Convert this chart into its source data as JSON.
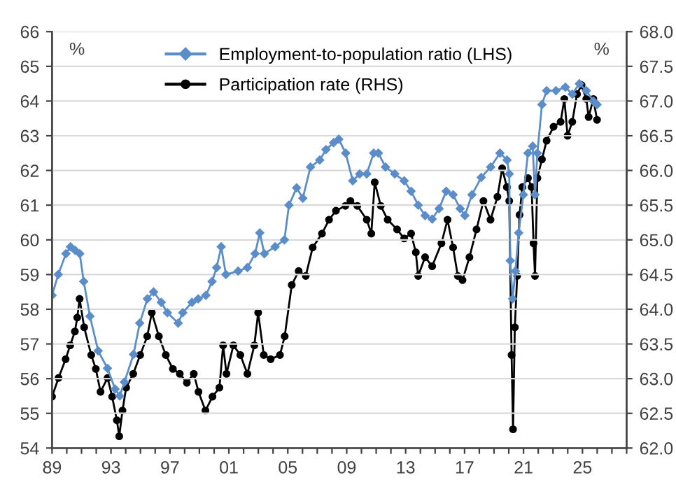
{
  "chart_data": {
    "type": "line",
    "ylabel": "%",
    "y2label": "%",
    "xlim": [
      1989,
      2028
    ],
    "xticks": [
      {
        "value": 1989,
        "label": "89"
      },
      {
        "value": 1990,
        "label": null
      },
      {
        "value": 1991,
        "label": null
      },
      {
        "value": 1992,
        "label": null
      },
      {
        "value": 1993,
        "label": "93"
      },
      {
        "value": 1994,
        "label": null
      },
      {
        "value": 1995,
        "label": null
      },
      {
        "value": 1996,
        "label": null
      },
      {
        "value": 1997,
        "label": "97"
      },
      {
        "value": 1998,
        "label": null
      },
      {
        "value": 1999,
        "label": null
      },
      {
        "value": 2000,
        "label": null
      },
      {
        "value": 2001,
        "label": "01"
      },
      {
        "value": 2002,
        "label": null
      },
      {
        "value": 2003,
        "label": null
      },
      {
        "value": 2004,
        "label": null
      },
      {
        "value": 2005,
        "label": "05"
      },
      {
        "value": 2006,
        "label": null
      },
      {
        "value": 2007,
        "label": null
      },
      {
        "value": 2008,
        "label": null
      },
      {
        "value": 2009,
        "label": "09"
      },
      {
        "value": 2010,
        "label": null
      },
      {
        "value": 2011,
        "label": null
      },
      {
        "value": 2012,
        "label": null
      },
      {
        "value": 2013,
        "label": "13"
      },
      {
        "value": 2014,
        "label": null
      },
      {
        "value": 2015,
        "label": null
      },
      {
        "value": 2016,
        "label": null
      },
      {
        "value": 2017,
        "label": "17"
      },
      {
        "value": 2018,
        "label": null
      },
      {
        "value": 2019,
        "label": null
      },
      {
        "value": 2020,
        "label": null
      },
      {
        "value": 2021,
        "label": "21"
      },
      {
        "value": 2022,
        "label": null
      },
      {
        "value": 2023,
        "label": null
      },
      {
        "value": 2024,
        "label": null
      },
      {
        "value": 2025,
        "label": "25"
      },
      {
        "value": 2026,
        "label": null
      },
      {
        "value": 2027,
        "label": null
      },
      {
        "value": 2028,
        "label": null
      }
    ],
    "ylim": [
      54,
      66
    ],
    "yticks": [
      54,
      55,
      56,
      57,
      58,
      59,
      60,
      61,
      62,
      63,
      64,
      65,
      66
    ],
    "y2lim": [
      62,
      68
    ],
    "y2ticks": [
      {
        "value": 62,
        "label": "62.0"
      },
      {
        "value": 62.5,
        "label": "62.5"
      },
      {
        "value": 63,
        "label": "63.0"
      },
      {
        "value": 63.5,
        "label": "63.5"
      },
      {
        "value": 64,
        "label": "64.0"
      },
      {
        "value": 64.5,
        "label": "64.5"
      },
      {
        "value": 65,
        "label": "65.0"
      },
      {
        "value": 65.5,
        "label": "65.5"
      },
      {
        "value": 66,
        "label": "66.0"
      },
      {
        "value": 66.5,
        "label": "66.5"
      },
      {
        "value": 67,
        "label": "67.0"
      },
      {
        "value": 67.5,
        "label": "67.5"
      },
      {
        "value": 68,
        "label": "68.0"
      }
    ],
    "grid": "y",
    "legend": "top",
    "line_style": "solid",
    "series": [
      {
        "name": "Employment-to-population ratio (LHS)",
        "color": "#5b8dc9",
        "marker": "diamond",
        "x": [
          1989.0,
          1989.42,
          1989.94,
          1990.25,
          1990.56,
          1990.88,
          1991.15,
          1991.57,
          1992.13,
          1992.76,
          1993.28,
          1993.59,
          1993.91,
          1994.53,
          1994.95,
          1995.47,
          1995.89,
          1996.41,
          1996.83,
          1997.56,
          1997.87,
          1998.5,
          1998.92,
          1999.44,
          1999.86,
          2000.17,
          2000.48,
          2000.8,
          2001.63,
          2002.26,
          2002.78,
          2003.1,
          2003.41,
          2004.14,
          2004.77,
          2005.08,
          2005.6,
          2006.02,
          2006.54,
          2007.17,
          2007.59,
          2008.11,
          2008.46,
          2008.93,
          2009.41,
          2009.88,
          2010.36,
          2010.83,
          2011.15,
          2011.63,
          2012.26,
          2012.9,
          2013.37,
          2013.85,
          2014.32,
          2014.8,
          2015.27,
          2015.75,
          2016.22,
          2016.7,
          2017.02,
          2017.5,
          2018.13,
          2018.77,
          2019.4,
          2019.88,
          2020.03,
          2020.1,
          2020.26,
          2020.45,
          2020.67,
          2020.99,
          2021.3,
          2021.62,
          2021.78,
          2021.94,
          2022.25,
          2022.57,
          2023.2,
          2023.84,
          2024.31,
          2024.79,
          2025.26,
          2025.74,
          2025.99
        ],
        "values": [
          58.4,
          59.0,
          59.6,
          59.8,
          59.7,
          59.6,
          58.8,
          57.8,
          56.8,
          56.3,
          55.7,
          55.5,
          55.9,
          56.7,
          57.6,
          58.3,
          58.5,
          58.2,
          57.9,
          57.6,
          57.9,
          58.2,
          58.3,
          58.4,
          58.8,
          59.2,
          59.8,
          59.0,
          59.1,
          59.2,
          59.6,
          60.2,
          59.6,
          59.8,
          60.0,
          61.0,
          61.5,
          61.2,
          62.1,
          62.3,
          62.6,
          62.8,
          62.9,
          62.5,
          61.7,
          61.9,
          61.9,
          62.5,
          62.5,
          62.1,
          61.9,
          61.7,
          61.4,
          61.0,
          60.7,
          60.6,
          60.9,
          61.4,
          61.3,
          60.9,
          60.7,
          61.3,
          61.8,
          62.1,
          62.5,
          62.3,
          61.9,
          59.4,
          58.3,
          59.1,
          60.2,
          61.3,
          62.5,
          62.7,
          61.3,
          62.5,
          63.9,
          64.3,
          64.3,
          64.4,
          64.2,
          64.5,
          64.3,
          64.0,
          63.9
        ]
      },
      {
        "name": "Participation rate (RHS)",
        "color": "#000000",
        "marker": "circle",
        "axis": "y2",
        "x": [
          1989.0,
          1989.44,
          1989.92,
          1990.23,
          1990.55,
          1990.71,
          1990.87,
          1991.18,
          1991.66,
          1991.97,
          1992.29,
          1992.77,
          1993.08,
          1993.4,
          1993.56,
          1993.78,
          1994.03,
          1994.51,
          1994.98,
          1995.46,
          1995.77,
          1996.25,
          1996.72,
          1997.2,
          1997.67,
          1998.15,
          1998.62,
          1998.94,
          1999.41,
          1999.89,
          2000.36,
          2000.61,
          2000.84,
          2001.31,
          2001.78,
          2002.26,
          2002.73,
          2002.99,
          2003.37,
          2003.84,
          2004.47,
          2004.79,
          2005.27,
          2005.74,
          2006.22,
          2006.69,
          2007.32,
          2007.8,
          2008.27,
          2008.91,
          2009.25,
          2009.72,
          2010.36,
          2010.67,
          2010.9,
          2011.31,
          2011.78,
          2012.42,
          2012.9,
          2013.37,
          2013.69,
          2013.85,
          2014.32,
          2014.8,
          2015.43,
          2015.84,
          2016.22,
          2016.54,
          2016.86,
          2017.33,
          2017.81,
          2018.28,
          2018.76,
          2019.23,
          2019.55,
          2019.87,
          2020.03,
          2020.19,
          2020.29,
          2020.41,
          2020.57,
          2020.73,
          2020.92,
          2021.3,
          2021.55,
          2021.68,
          2021.78,
          2021.94,
          2022.25,
          2022.57,
          2023.04,
          2023.52,
          2023.77,
          2023.99,
          2024.31,
          2024.63,
          2024.94,
          2025.26,
          2025.42,
          2025.74,
          2025.99
        ],
        "values": [
          62.74,
          63.01,
          63.28,
          63.48,
          63.68,
          63.88,
          64.15,
          63.74,
          63.34,
          63.14,
          62.81,
          63.01,
          62.74,
          62.4,
          62.17,
          62.54,
          62.87,
          63.07,
          63.34,
          63.61,
          63.95,
          63.61,
          63.34,
          63.14,
          63.07,
          62.94,
          63.07,
          62.81,
          62.54,
          62.74,
          62.87,
          63.48,
          63.07,
          63.48,
          63.34,
          63.07,
          63.48,
          63.95,
          63.34,
          63.28,
          63.34,
          63.61,
          64.35,
          64.55,
          64.48,
          64.89,
          65.09,
          65.29,
          65.42,
          65.49,
          65.56,
          65.49,
          65.29,
          65.09,
          65.83,
          65.49,
          65.29,
          65.15,
          65.02,
          65.09,
          64.82,
          64.48,
          64.75,
          64.62,
          64.95,
          65.29,
          64.89,
          64.48,
          64.42,
          64.75,
          65.15,
          65.56,
          65.29,
          65.62,
          66.03,
          65.76,
          65.56,
          63.34,
          62.27,
          63.74,
          64.48,
          65.36,
          65.76,
          65.89,
          65.76,
          64.95,
          64.48,
          65.89,
          66.16,
          66.43,
          66.63,
          66.7,
          67.03,
          66.5,
          66.7,
          67.1,
          67.23,
          67.03,
          66.77,
          67.03,
          66.73
        ]
      }
    ]
  }
}
